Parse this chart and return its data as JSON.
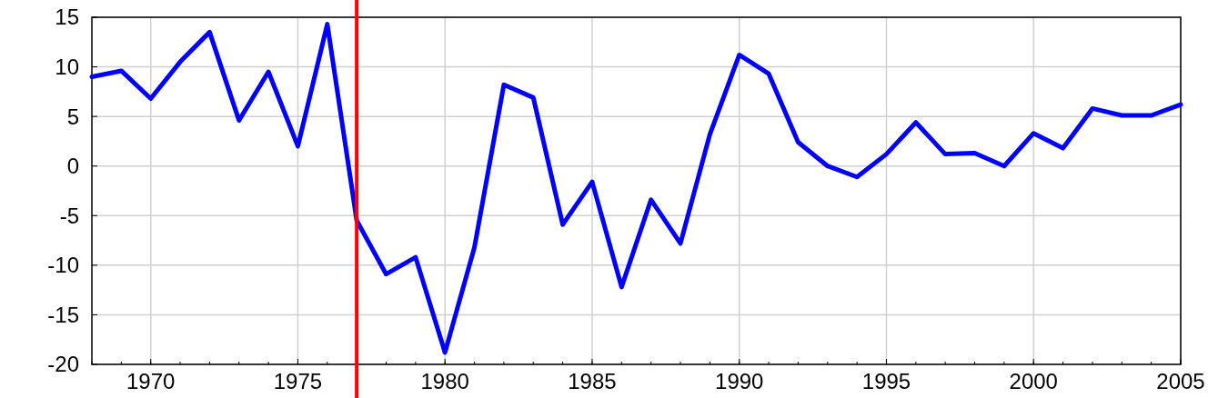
{
  "chart_data": {
    "type": "line",
    "x": [
      1968,
      1969,
      1970,
      1971,
      1972,
      1973,
      1974,
      1975,
      1976,
      1977,
      1978,
      1979,
      1980,
      1981,
      1982,
      1983,
      1984,
      1985,
      1986,
      1987,
      1988,
      1989,
      1990,
      1991,
      1992,
      1993,
      1994,
      1995,
      1996,
      1997,
      1998,
      1999,
      2000,
      2001,
      2002,
      2003,
      2004,
      2005
    ],
    "series": [
      {
        "color": "#0000ff",
        "values": [
          9.0,
          9.6,
          6.8,
          10.5,
          13.5,
          4.6,
          9.5,
          2.0,
          14.3,
          -5.5,
          -10.9,
          -9.2,
          -18.8,
          -8.2,
          8.2,
          6.9,
          -5.9,
          -1.6,
          -12.2,
          -3.4,
          -7.8,
          3.2,
          11.2,
          9.3,
          2.4,
          0,
          -1.1,
          1.2,
          4.4,
          1.2,
          1.3,
          0,
          3.3,
          1.8,
          5.8,
          5.1,
          5.1,
          6.2
        ]
      }
    ],
    "xlim": [
      1968,
      2005
    ],
    "xticks": [
      1970,
      1975,
      1980,
      1985,
      1990,
      1995,
      2000,
      2005
    ],
    "ylim": [
      -20,
      15
    ],
    "yticks": [
      -20,
      -15,
      -10,
      -5,
      0,
      5,
      10,
      15
    ],
    "grid": true,
    "line_style": "solid",
    "marker": "none",
    "ref_lines": [
      {
        "axis": "x",
        "value": 1977,
        "color": "#ff0000"
      }
    ]
  }
}
